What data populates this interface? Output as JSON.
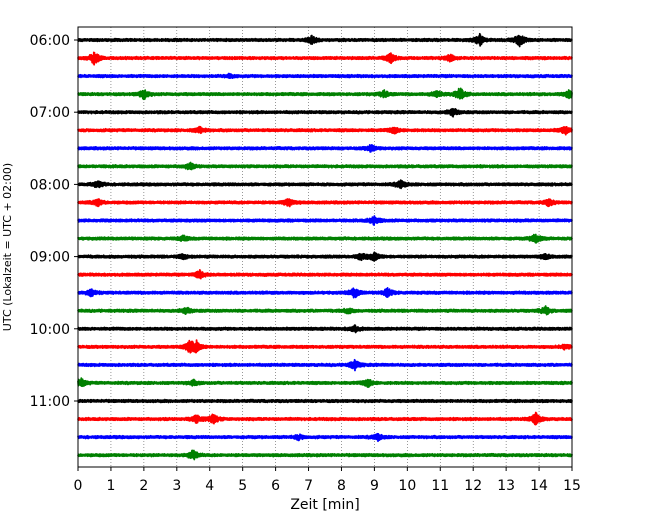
{
  "chart_data": {
    "type": "line",
    "subtype": "seismogram-helicorder",
    "title": "",
    "xlabel": "Zeit  [min]",
    "ylabel": "UTC (Lokalzeit = UTC + 02:00)",
    "xlim": [
      0,
      15
    ],
    "x_ticks": [
      0,
      1,
      2,
      3,
      4,
      5,
      6,
      7,
      8,
      9,
      10,
      11,
      12,
      13,
      14,
      15
    ],
    "x_tick_labels": [
      "0",
      "1",
      "2",
      "3",
      "4",
      "5",
      "6",
      "7",
      "8",
      "9",
      "10",
      "11",
      "12",
      "13",
      "14",
      "15"
    ],
    "y_tick_labels": [
      "06:00",
      "07:00",
      "08:00",
      "09:00",
      "10:00",
      "11:00"
    ],
    "minutes_per_trace": 15,
    "grid": "vertical dotted at each minute",
    "trace_colors": [
      "#000000",
      "#ff0000",
      "#0000ff",
      "#008000"
    ],
    "traces": [
      {
        "start": "06:00",
        "color": "#000000",
        "events": [
          [
            7.1,
            0.5
          ],
          [
            12.2,
            0.7
          ],
          [
            13.4,
            0.8
          ]
        ]
      },
      {
        "start": "06:15",
        "color": "#ff0000",
        "events": [
          [
            0.5,
            0.8
          ],
          [
            9.5,
            0.6
          ],
          [
            11.3,
            0.4
          ]
        ]
      },
      {
        "start": "06:30",
        "color": "#0000ff",
        "events": [
          [
            4.6,
            0.2
          ]
        ]
      },
      {
        "start": "06:45",
        "color": "#008000",
        "events": [
          [
            2.0,
            0.6
          ],
          [
            9.3,
            0.4
          ],
          [
            10.9,
            0.4
          ],
          [
            11.6,
            0.8
          ],
          [
            14.9,
            0.5
          ]
        ]
      },
      {
        "start": "07:00",
        "color": "#000000",
        "events": [
          [
            11.4,
            0.5
          ]
        ]
      },
      {
        "start": "07:15",
        "color": "#ff0000",
        "events": [
          [
            3.7,
            0.4
          ],
          [
            9.6,
            0.4
          ],
          [
            14.8,
            0.5
          ]
        ]
      },
      {
        "start": "07:30",
        "color": "#0000ff",
        "events": [
          [
            8.9,
            0.4
          ]
        ]
      },
      {
        "start": "07:45",
        "color": "#008000",
        "events": [
          [
            3.4,
            0.4
          ]
        ]
      },
      {
        "start": "08:00",
        "color": "#000000",
        "events": [
          [
            0.6,
            0.4
          ],
          [
            9.8,
            0.5
          ]
        ]
      },
      {
        "start": "08:15",
        "color": "#ff0000",
        "events": [
          [
            0.6,
            0.4
          ],
          [
            6.4,
            0.5
          ],
          [
            14.3,
            0.4
          ]
        ]
      },
      {
        "start": "08:30",
        "color": "#0000ff",
        "events": [
          [
            9.0,
            0.5
          ]
        ]
      },
      {
        "start": "08:45",
        "color": "#008000",
        "events": [
          [
            3.2,
            0.3
          ],
          [
            13.9,
            0.6
          ]
        ]
      },
      {
        "start": "09:00",
        "color": "#000000",
        "events": [
          [
            3.2,
            0.3
          ],
          [
            8.6,
            0.4
          ],
          [
            9.0,
            0.5
          ],
          [
            14.2,
            0.3
          ]
        ]
      },
      {
        "start": "09:15",
        "color": "#ff0000",
        "events": [
          [
            3.7,
            0.5
          ]
        ]
      },
      {
        "start": "09:30",
        "color": "#0000ff",
        "events": [
          [
            0.4,
            0.4
          ],
          [
            8.4,
            0.6
          ],
          [
            9.4,
            0.5
          ]
        ]
      },
      {
        "start": "09:45",
        "color": "#008000",
        "events": [
          [
            3.3,
            0.4
          ],
          [
            8.2,
            0.3
          ],
          [
            14.2,
            0.5
          ]
        ]
      },
      {
        "start": "10:00",
        "color": "#000000",
        "events": [
          [
            8.4,
            0.4
          ]
        ]
      },
      {
        "start": "10:15",
        "color": "#ff0000",
        "events": [
          [
            3.4,
            0.7
          ],
          [
            3.6,
            0.6
          ],
          [
            14.8,
            0.3
          ]
        ]
      },
      {
        "start": "10:30",
        "color": "#0000ff",
        "events": [
          [
            8.4,
            0.6
          ]
        ]
      },
      {
        "start": "10:45",
        "color": "#008000",
        "events": [
          [
            0.1,
            0.5
          ],
          [
            3.5,
            0.3
          ],
          [
            8.8,
            0.5
          ]
        ]
      },
      {
        "start": "11:00",
        "color": "#000000",
        "events": []
      },
      {
        "start": "11:15",
        "color": "#ff0000",
        "events": [
          [
            3.6,
            0.5
          ],
          [
            4.1,
            0.6
          ],
          [
            13.9,
            0.7
          ]
        ]
      },
      {
        "start": "11:30",
        "color": "#0000ff",
        "events": [
          [
            6.7,
            0.3
          ],
          [
            9.1,
            0.4
          ]
        ]
      },
      {
        "start": "11:45",
        "color": "#008000",
        "events": [
          [
            3.5,
            0.6
          ]
        ]
      }
    ]
  }
}
